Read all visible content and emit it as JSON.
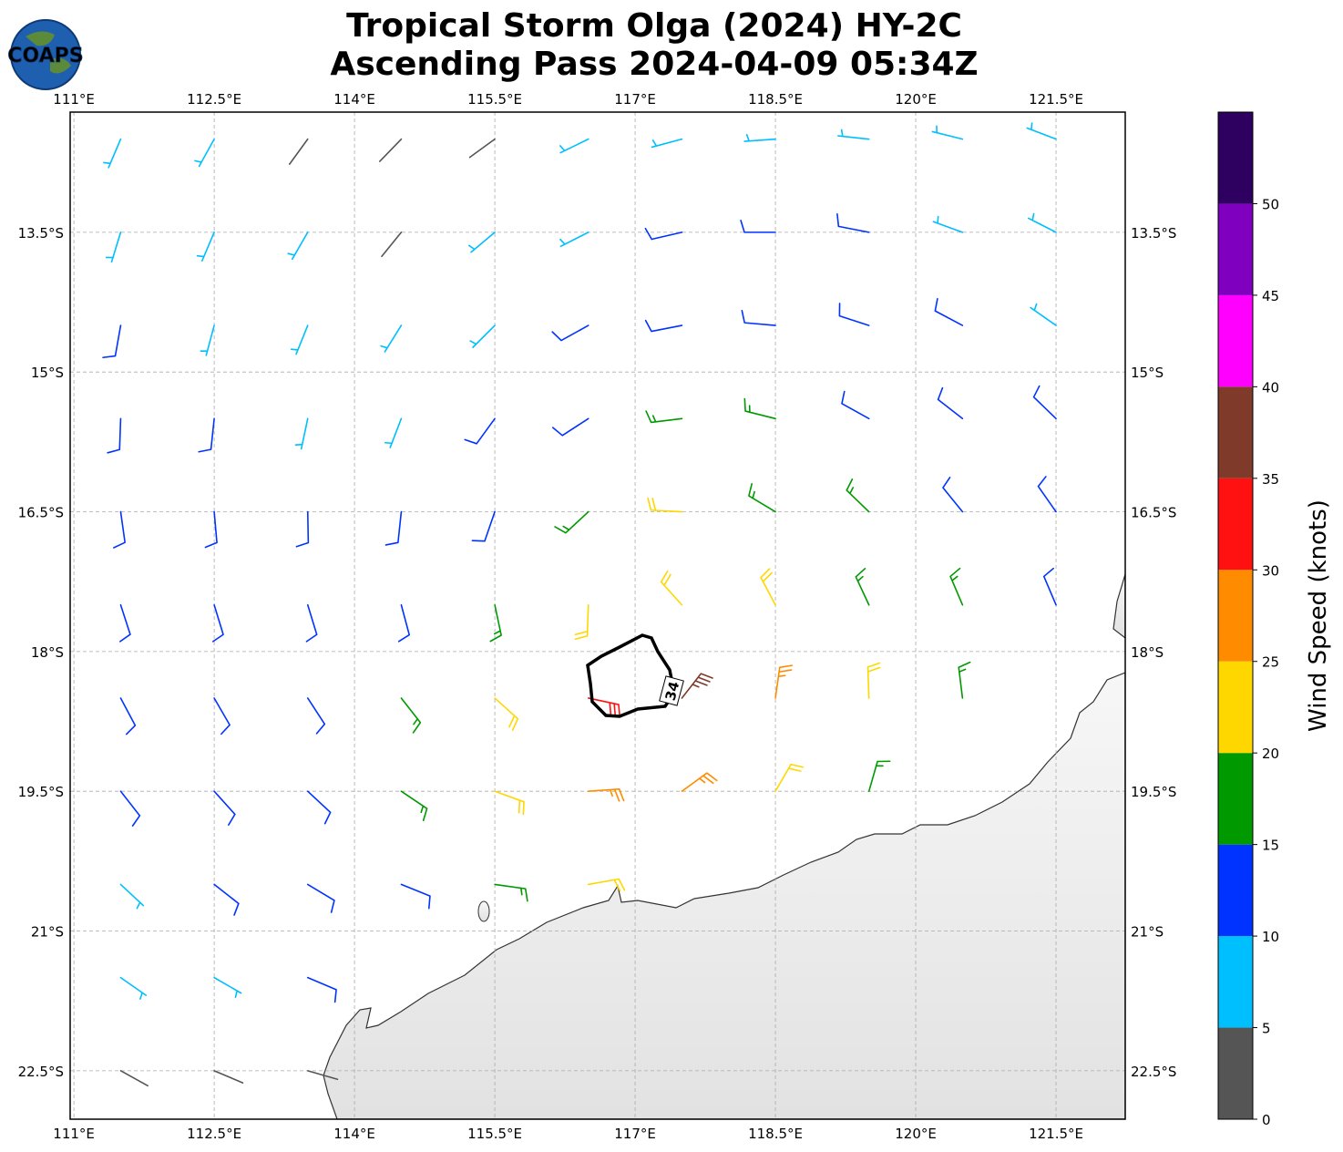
{
  "chart_data": {
    "type": "wind-barbs",
    "title": "Tropical Storm Olga (2024) HY-2C",
    "subtitle": "Ascending Pass 2024-04-09 05:34Z",
    "logo": "COAPS",
    "xlim": [
      110.96,
      122.24
    ],
    "ylim": [
      -12.21,
      -23.02
    ],
    "xticks": [
      {
        "value": 111,
        "label": "111°E"
      },
      {
        "value": 112.5,
        "label": "112.5°E"
      },
      {
        "value": 114,
        "label": "114°E"
      },
      {
        "value": 115.5,
        "label": "115.5°E"
      },
      {
        "value": 117,
        "label": "117°E"
      },
      {
        "value": 118.5,
        "label": "118.5°E"
      },
      {
        "value": 120,
        "label": "120°E"
      },
      {
        "value": 121.5,
        "label": "121.5°E"
      }
    ],
    "yticks": [
      {
        "value": -13.5,
        "label": "13.5°S"
      },
      {
        "value": -15,
        "label": "15°S"
      },
      {
        "value": -16.5,
        "label": "16.5°S"
      },
      {
        "value": -18,
        "label": "18°S"
      },
      {
        "value": -19.5,
        "label": "19.5°S"
      },
      {
        "value": -21,
        "label": "21°S"
      },
      {
        "value": -22.5,
        "label": "22.5°S"
      }
    ],
    "grid": true,
    "lons": [
      111.5,
      112.5,
      113.5,
      114.5,
      115.5,
      116.5,
      117.5,
      118.5,
      119.5,
      120.5,
      121.5
    ],
    "lats": [
      -12.5,
      -13.5,
      -14.5,
      -15.5,
      -16.5,
      -17.5,
      -18.5,
      -19.5,
      -20.5,
      -21.5,
      -22.5
    ],
    "speed": [
      [
        8,
        7,
        4,
        3,
        3,
        7,
        8,
        8,
        8,
        8,
        8
      ],
      [
        8,
        8,
        6,
        3,
        6,
        9,
        12,
        12,
        11,
        9,
        8
      ],
      [
        11,
        8,
        8,
        7,
        9,
        12,
        13,
        14,
        13,
        12,
        9
      ],
      [
        12,
        12,
        9,
        8,
        11,
        14,
        16,
        17,
        14,
        13,
        11
      ],
      [
        12,
        13,
        12,
        11,
        13,
        17,
        22,
        19,
        16,
        13,
        11
      ],
      [
        13,
        13,
        13,
        14,
        17,
        22,
        24,
        22,
        18,
        15,
        12
      ],
      [
        13,
        13,
        13,
        17,
        21,
        33,
        36,
        27,
        22,
        15,
        null
      ],
      [
        12,
        12,
        13,
        17,
        22,
        27,
        26,
        22,
        17,
        null,
        null
      ],
      [
        9,
        12,
        12,
        13,
        18,
        22,
        null,
        null,
        null,
        null,
        null
      ],
      [
        7,
        8,
        10,
        null,
        null,
        null,
        null,
        null,
        null,
        null,
        null
      ],
      [
        4,
        3,
        3,
        null,
        null,
        null,
        null,
        null,
        null,
        null,
        null
      ]
    ],
    "direction": [
      [
        203,
        209,
        216,
        224,
        234,
        244,
        255,
        266,
        276,
        284,
        291
      ],
      [
        197,
        203,
        210,
        219,
        230,
        243,
        257,
        270,
        281,
        290,
        297
      ],
      [
        190,
        195,
        202,
        212,
        225,
        241,
        259,
        275,
        288,
        298,
        305
      ],
      [
        182,
        186,
        192,
        201,
        216,
        237,
        263,
        284,
        299,
        308,
        314
      ],
      [
        172,
        175,
        179,
        186,
        199,
        227,
        273,
        301,
        314,
        321,
        325
      ],
      [
        162,
        163,
        163,
        165,
        168,
        182,
        318,
        332,
        335,
        337,
        337
      ],
      [
        152,
        150,
        147,
        142,
        132,
        102,
        38,
        8,
        358,
        353,
        null
      ],
      [
        142,
        138,
        133,
        124,
        110,
        86,
        54,
        30,
        16,
        null,
        null
      ],
      [
        133,
        128,
        121,
        112,
        98,
        80,
        null,
        null,
        null,
        null,
        null
      ],
      [
        125,
        120,
        113,
        null,
        null,
        null,
        null,
        null,
        null,
        null,
        null
      ],
      [
        119,
        113,
        106,
        null,
        null,
        null,
        null,
        null,
        null,
        null,
        null
      ]
    ],
    "contour_level": 34,
    "colorbar": {
      "label": "Wind Speed (knots)",
      "bounds": [
        0,
        5,
        10,
        15,
        20,
        25,
        30,
        35,
        40,
        45,
        50,
        55
      ],
      "colors": [
        "#555555",
        "#00bfff",
        "#0033ff",
        "#009900",
        "#ffd700",
        "#ff8c00",
        "#ff1111",
        "#7f3a2a",
        "#ff00ff",
        "#8000c0",
        "#2e0060"
      ],
      "ticks": [
        0,
        5,
        10,
        15,
        20,
        25,
        30,
        35,
        40,
        45,
        50
      ]
    }
  }
}
